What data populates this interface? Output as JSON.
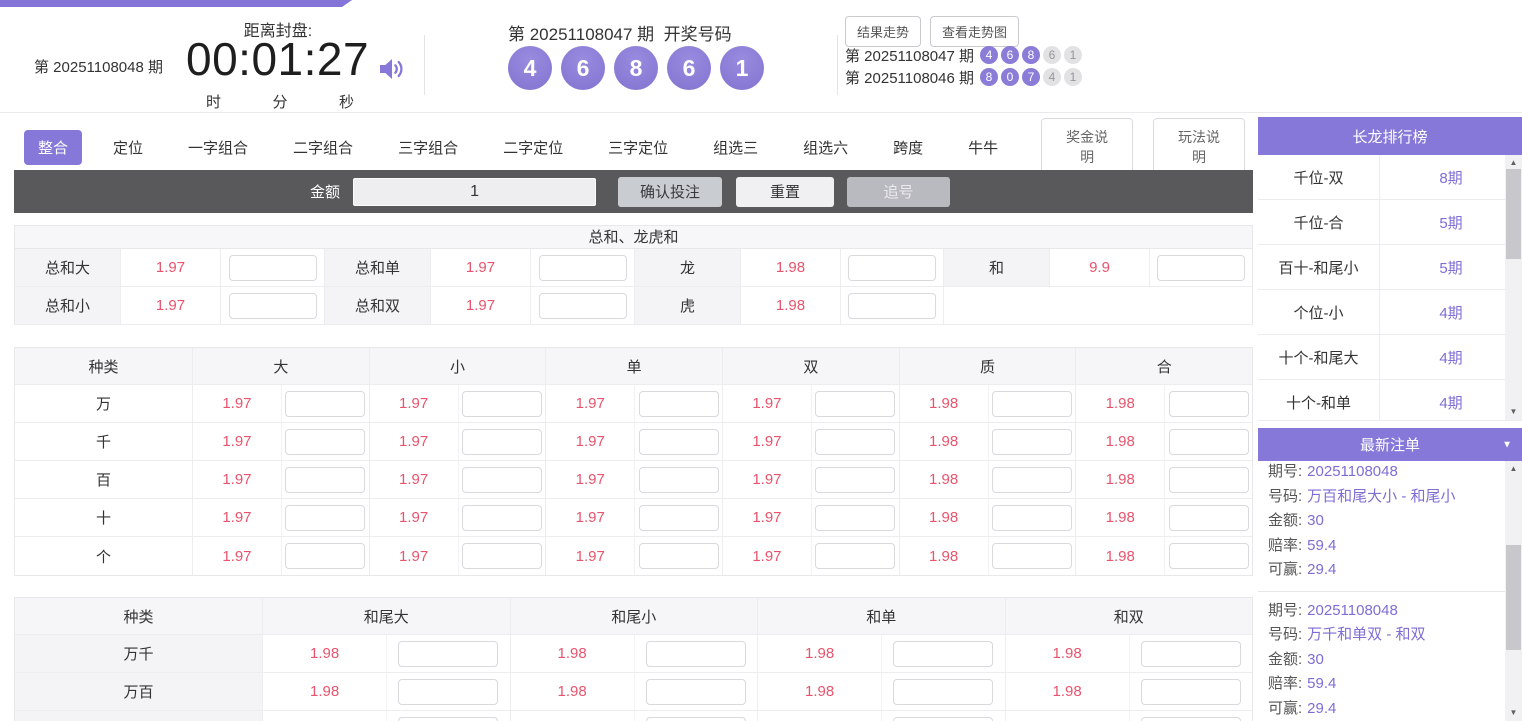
{
  "colors": {
    "accent_purple": "#8678d9",
    "ball_purple": "#8b7cd8",
    "odds_red": "#e8546d",
    "bet_bar_dark": "#59595c"
  },
  "icons": {
    "speaker": "speaker-on",
    "chevron_down": "▼",
    "triangle_up": "▲",
    "triangle_down": "▼"
  },
  "header": {
    "current_period_text": "第 20251108048 期",
    "countdown_label": "距离封盘:",
    "countdown": "00:01:27",
    "time_units": [
      "时",
      "分",
      "秒"
    ],
    "last_draw": {
      "title": "第 20251108047 期  开奖号码",
      "balls": [
        "4",
        "6",
        "8",
        "6",
        "1"
      ]
    },
    "trend": {
      "buttons": [
        "结果走势",
        "查看走势图"
      ],
      "history": [
        {
          "label": "第 20251108047 期",
          "balls": [
            "4",
            "6",
            "8",
            "6",
            "1"
          ],
          "purple_count": 3
        },
        {
          "label": "第 20251108046 期",
          "balls": [
            "8",
            "0",
            "7",
            "4",
            "1"
          ],
          "purple_count": 3
        }
      ]
    }
  },
  "tabs": {
    "items": [
      "整合",
      "定位",
      "一字组合",
      "二字组合",
      "三字组合",
      "二字定位",
      "三字定位",
      "组选三",
      "组选六",
      "跨度",
      "牛牛"
    ],
    "active_index": 0,
    "help_buttons": [
      "奖金说明",
      "玩法说明"
    ]
  },
  "bet_bar": {
    "amount_label": "金额",
    "amount_value": "1",
    "buttons": [
      "确认投注",
      "重置",
      "追号"
    ]
  },
  "sum_table": {
    "title": "总和、龙虎和",
    "rows": [
      [
        {
          "label": "总和大",
          "odds": "1.97"
        },
        {
          "label": "总和单",
          "odds": "1.97"
        },
        {
          "label": "龙",
          "odds": "1.98"
        },
        {
          "label": "和",
          "odds": "9.9"
        }
      ],
      [
        {
          "label": "总和小",
          "odds": "1.97"
        },
        {
          "label": "总和双",
          "odds": "1.97"
        },
        {
          "label": "虎",
          "odds": "1.98"
        },
        null
      ]
    ]
  },
  "position_table": {
    "headers": [
      "种类",
      "大",
      "小",
      "单",
      "双",
      "质",
      "合"
    ],
    "rows": [
      {
        "label": "万",
        "odds": [
          "1.97",
          "1.97",
          "1.97",
          "1.97",
          "1.98",
          "1.98"
        ]
      },
      {
        "label": "千",
        "odds": [
          "1.97",
          "1.97",
          "1.97",
          "1.97",
          "1.98",
          "1.98"
        ]
      },
      {
        "label": "百",
        "odds": [
          "1.97",
          "1.97",
          "1.97",
          "1.97",
          "1.98",
          "1.98"
        ]
      },
      {
        "label": "十",
        "odds": [
          "1.97",
          "1.97",
          "1.97",
          "1.97",
          "1.98",
          "1.98"
        ]
      },
      {
        "label": "个",
        "odds": [
          "1.97",
          "1.97",
          "1.97",
          "1.97",
          "1.98",
          "1.98"
        ]
      }
    ]
  },
  "combo_table": {
    "headers": [
      "种类",
      "和尾大",
      "和尾小",
      "和单",
      "和双"
    ],
    "rows": [
      {
        "label": "万千",
        "odds": [
          "1.98",
          "1.98",
          "1.98",
          "1.98"
        ]
      },
      {
        "label": "万百",
        "odds": [
          "1.98",
          "1.98",
          "1.98",
          "1.98"
        ]
      },
      {
        "label": "",
        "odds": [
          "",
          "",
          "",
          ""
        ]
      }
    ]
  },
  "dragon_panel": {
    "title": "长龙排行榜",
    "items": [
      {
        "name": "千位-双",
        "streak": "8期"
      },
      {
        "name": "千位-合",
        "streak": "5期"
      },
      {
        "name": "百十-和尾小",
        "streak": "5期"
      },
      {
        "name": "个位-小",
        "streak": "4期"
      },
      {
        "name": "十个-和尾大",
        "streak": "4期"
      },
      {
        "name": "十个-和单",
        "streak": "4期"
      }
    ]
  },
  "orders_panel": {
    "title": "最新注单",
    "field_labels": [
      "期号:",
      "号码:",
      "金额:",
      "赔率:",
      "可赢:"
    ],
    "orders": [
      {
        "period": "20251108048",
        "number": "万百和尾大小 - 和尾小",
        "amount": "30",
        "odds": "59.4",
        "win": "29.4"
      },
      {
        "period": "20251108048",
        "number": "万千和单双 - 和双",
        "amount": "30",
        "odds": "59.4",
        "win": "29.4"
      }
    ]
  }
}
